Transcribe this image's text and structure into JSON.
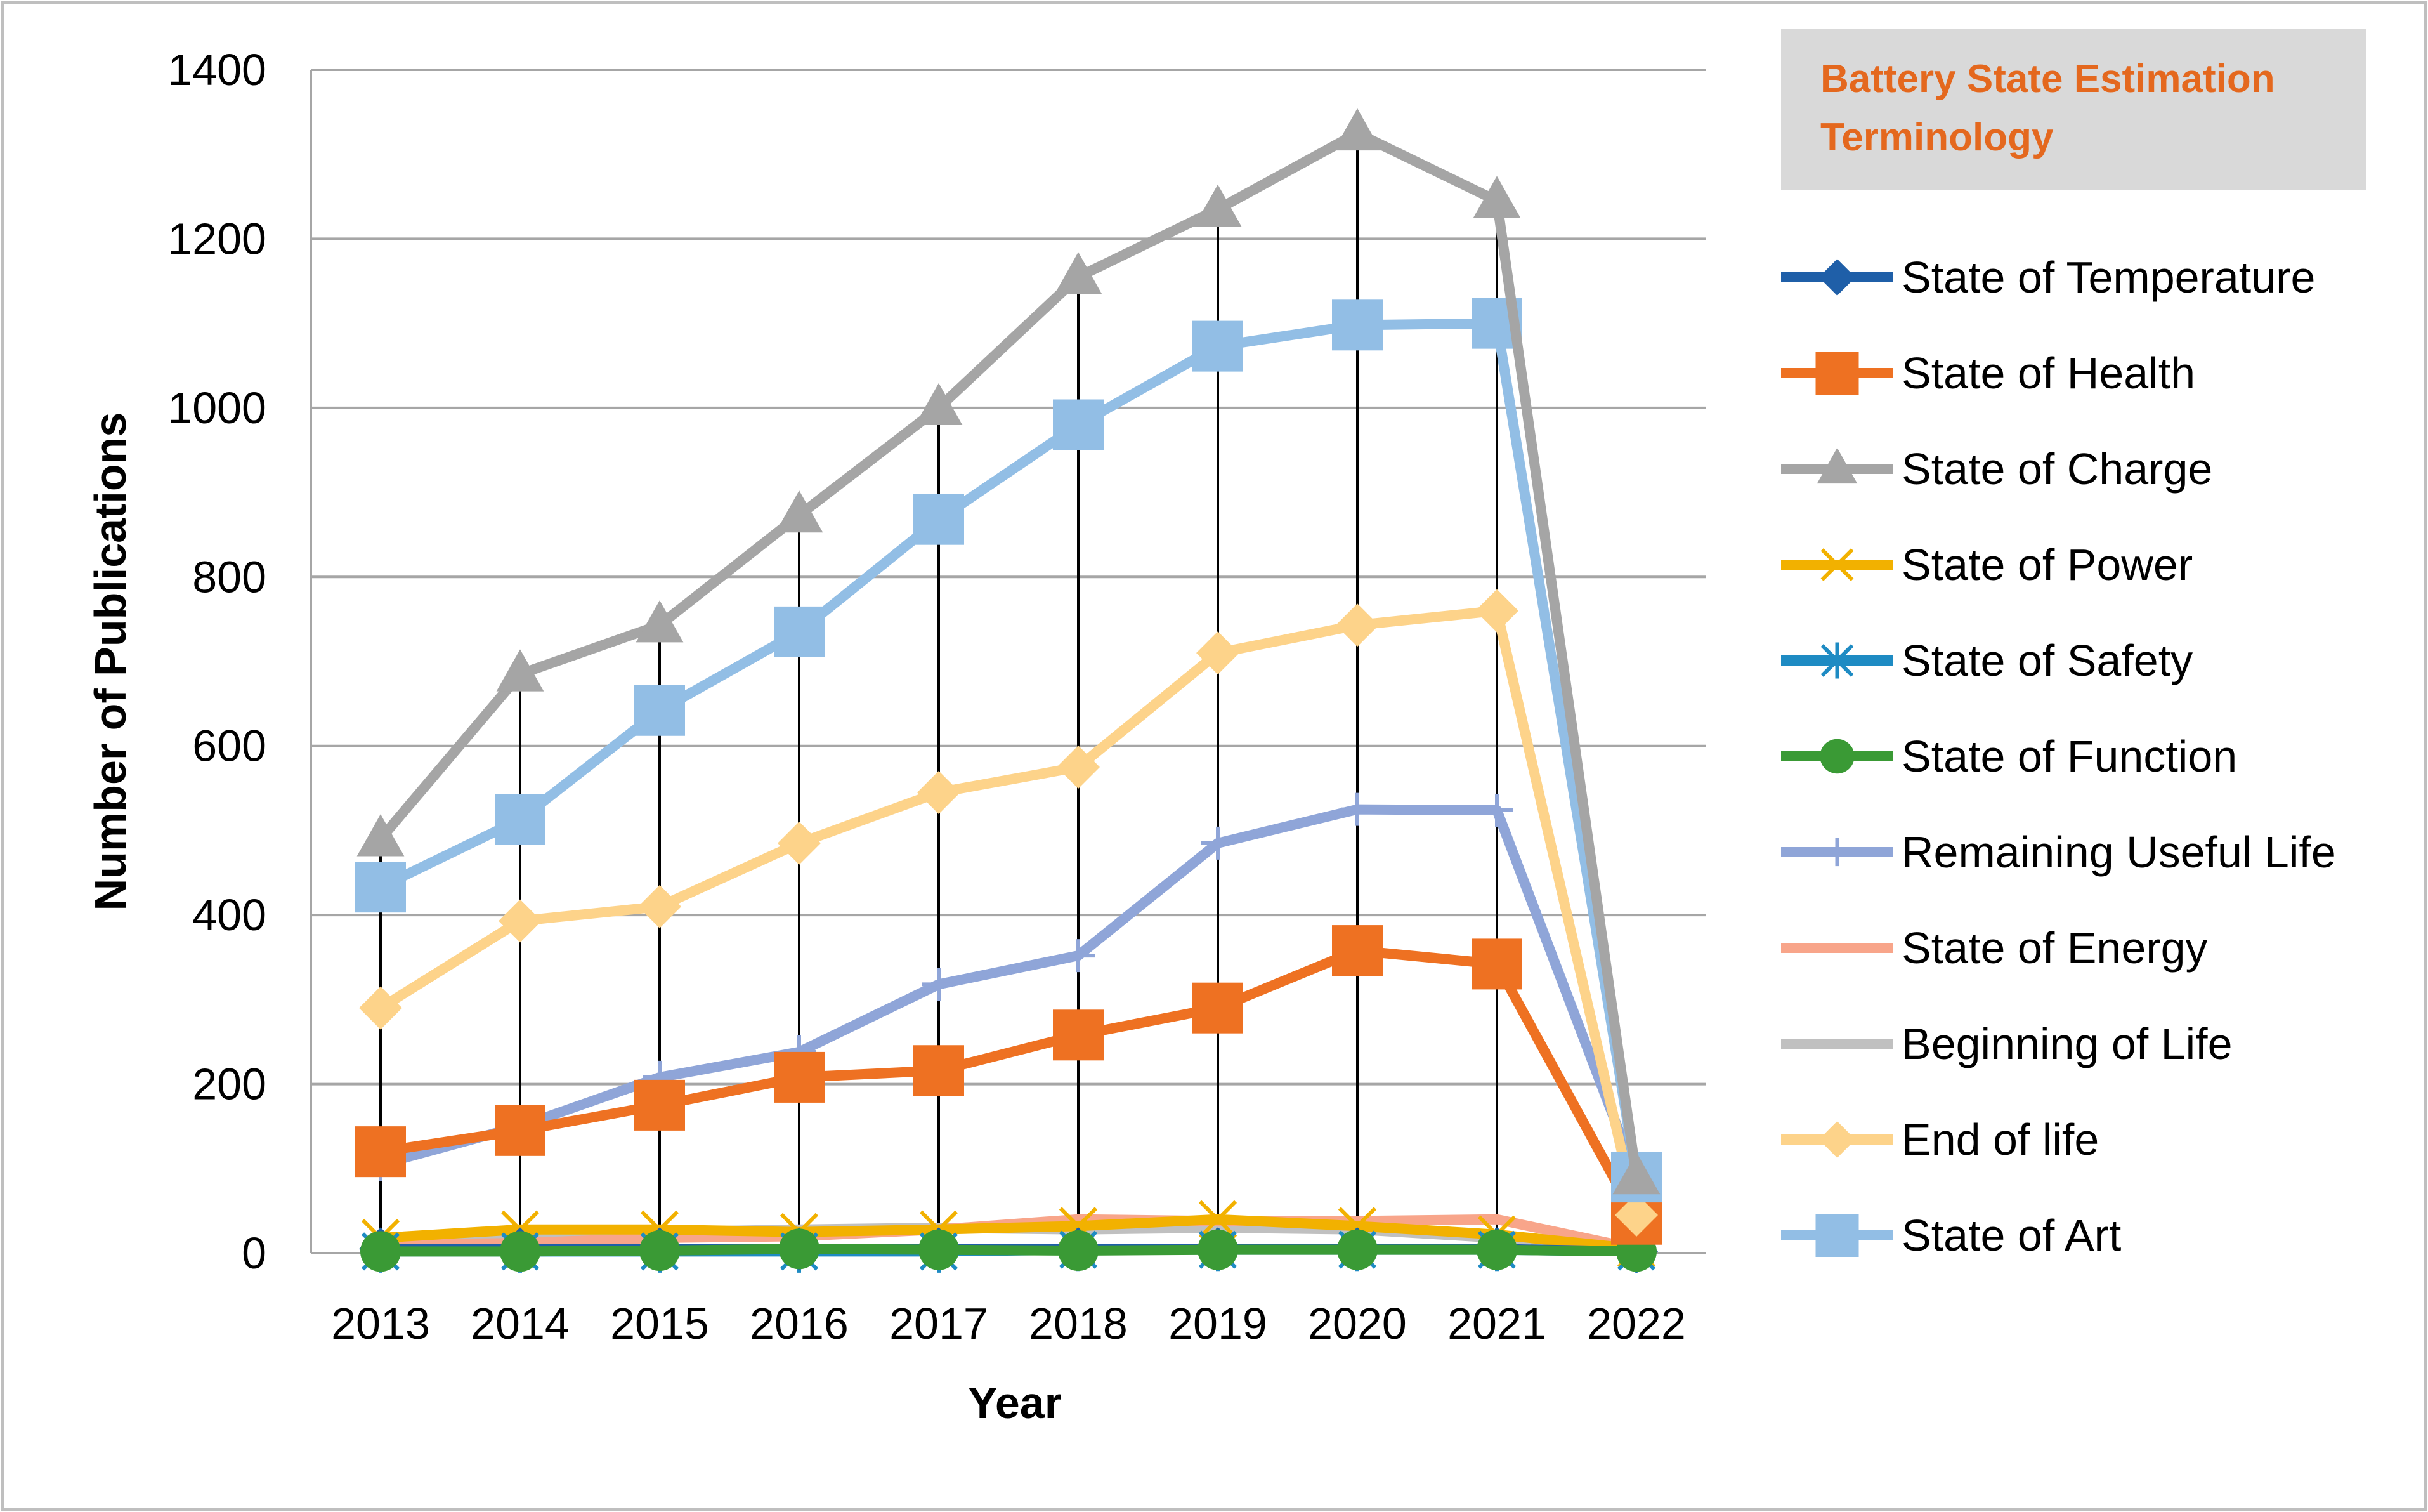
{
  "chart_data": {
    "type": "line",
    "title": "",
    "xlabel": "Year",
    "ylabel": "Number of Publications",
    "categories": [
      "2013",
      "2014",
      "2015",
      "2016",
      "2017",
      "2018",
      "2019",
      "2020",
      "2021",
      "2022"
    ],
    "ylim": [
      0,
      1400
    ],
    "yticks": [
      "0",
      "200",
      "400",
      "600",
      "800",
      "1000",
      "1200",
      "1400"
    ],
    "grid": true,
    "legend_title": [
      "Battery State Estimation",
      "Terminology"
    ],
    "legend_position": "right",
    "series": [
      {
        "name": "State of Temperature",
        "color": "#1F5FA8",
        "marker": "diamond",
        "values": [
          5,
          5,
          5,
          5,
          5,
          5,
          5,
          5,
          5,
          2
        ]
      },
      {
        "name": "State of Health",
        "color": "#EE7122",
        "marker": "square",
        "values": [
          120,
          145,
          175,
          208,
          216,
          258,
          290,
          358,
          342,
          40
        ]
      },
      {
        "name": "State of Charge",
        "color": "#A5A5A5",
        "marker": "triangle",
        "values": [
          490,
          685,
          743,
          873,
          1000,
          1155,
          1235,
          1325,
          1245,
          90
        ]
      },
      {
        "name": "State of Power",
        "color": "#F2B100",
        "marker": "x",
        "values": [
          18,
          28,
          28,
          25,
          28,
          32,
          40,
          32,
          22,
          5
        ]
      },
      {
        "name": "State of Safety",
        "color": "#1E8BC3",
        "marker": "asterisk",
        "values": [
          2,
          2,
          2,
          2,
          2,
          4,
          4,
          4,
          4,
          2
        ]
      },
      {
        "name": "State of Function",
        "color": "#3A9A35",
        "marker": "circle",
        "values": [
          2,
          2,
          3,
          5,
          4,
          3,
          4,
          4,
          4,
          2
        ]
      },
      {
        "name": "Remaining Useful Life",
        "color": "#8FA5D8",
        "marker": "plus",
        "values": [
          105,
          150,
          208,
          238,
          318,
          352,
          485,
          525,
          524,
          90
        ]
      },
      {
        "name": "State of Energy",
        "color": "#F8A58A",
        "marker": "none",
        "values": [
          10,
          12,
          18,
          20,
          28,
          40,
          38,
          38,
          40,
          5
        ]
      },
      {
        "name": "Beginning of Life",
        "color": "#C0C0C0",
        "marker": "none",
        "values": [
          15,
          18,
          25,
          28,
          30,
          28,
          30,
          28,
          18,
          3
        ]
      },
      {
        "name": "End of life",
        "color": "#FDD38A",
        "marker": "diamond",
        "values": [
          290,
          393,
          410,
          485,
          545,
          575,
          710,
          743,
          760,
          45
        ]
      },
      {
        "name": "State of Art",
        "color": "#92BEE5",
        "marker": "square",
        "values": [
          433,
          513,
          642,
          735,
          868,
          980,
          1073,
          1098,
          1100,
          90
        ]
      }
    ]
  }
}
